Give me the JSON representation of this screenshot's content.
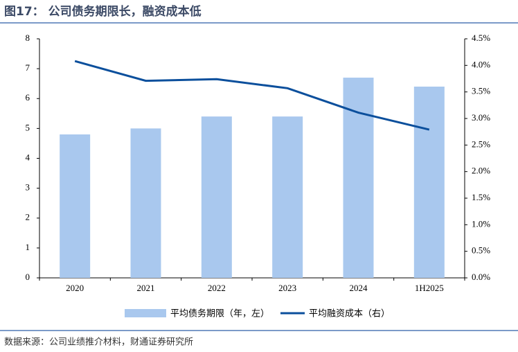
{
  "chart_data": {
    "type": "bar",
    "title": "图17： 公司债务期限长，融资成本低",
    "source": "数据来源：公司业绩推介材料，财通证券研究所",
    "categories": [
      "2020",
      "2021",
      "2022",
      "2023",
      "2024",
      "1H2025"
    ],
    "series": [
      {
        "name": "平均债务期限（年，左）",
        "type": "bar",
        "color": "#a9c8ee",
        "values": [
          4.8,
          5.0,
          5.4,
          5.4,
          6.7,
          6.4
        ]
      },
      {
        "name": "平均融资成本（右）",
        "type": "line",
        "axis": "y2",
        "color": "#0b4f9c",
        "values": [
          4.08,
          3.71,
          3.74,
          3.57,
          3.11,
          2.79
        ]
      }
    ],
    "ylim": [
      0,
      8
    ],
    "yticks": [
      0,
      1,
      2,
      3,
      4,
      5,
      6,
      7,
      8
    ],
    "y2lim": [
      0,
      4.5
    ],
    "y2ticks": [
      {
        "value": 0,
        "label": "0.0%"
      },
      {
        "value": 0.5,
        "label": "0.5%"
      },
      {
        "value": 1,
        "label": "1.0%"
      },
      {
        "value": 1.5,
        "label": "1.5%"
      },
      {
        "value": 2,
        "label": "2.0%"
      },
      {
        "value": 2.5,
        "label": "2.5%"
      },
      {
        "value": 3,
        "label": "3.0%"
      },
      {
        "value": 3.5,
        "label": "3.5%"
      },
      {
        "value": 4,
        "label": "4.0%"
      },
      {
        "value": 4.5,
        "label": "4.5%"
      }
    ],
    "grid": false
  }
}
